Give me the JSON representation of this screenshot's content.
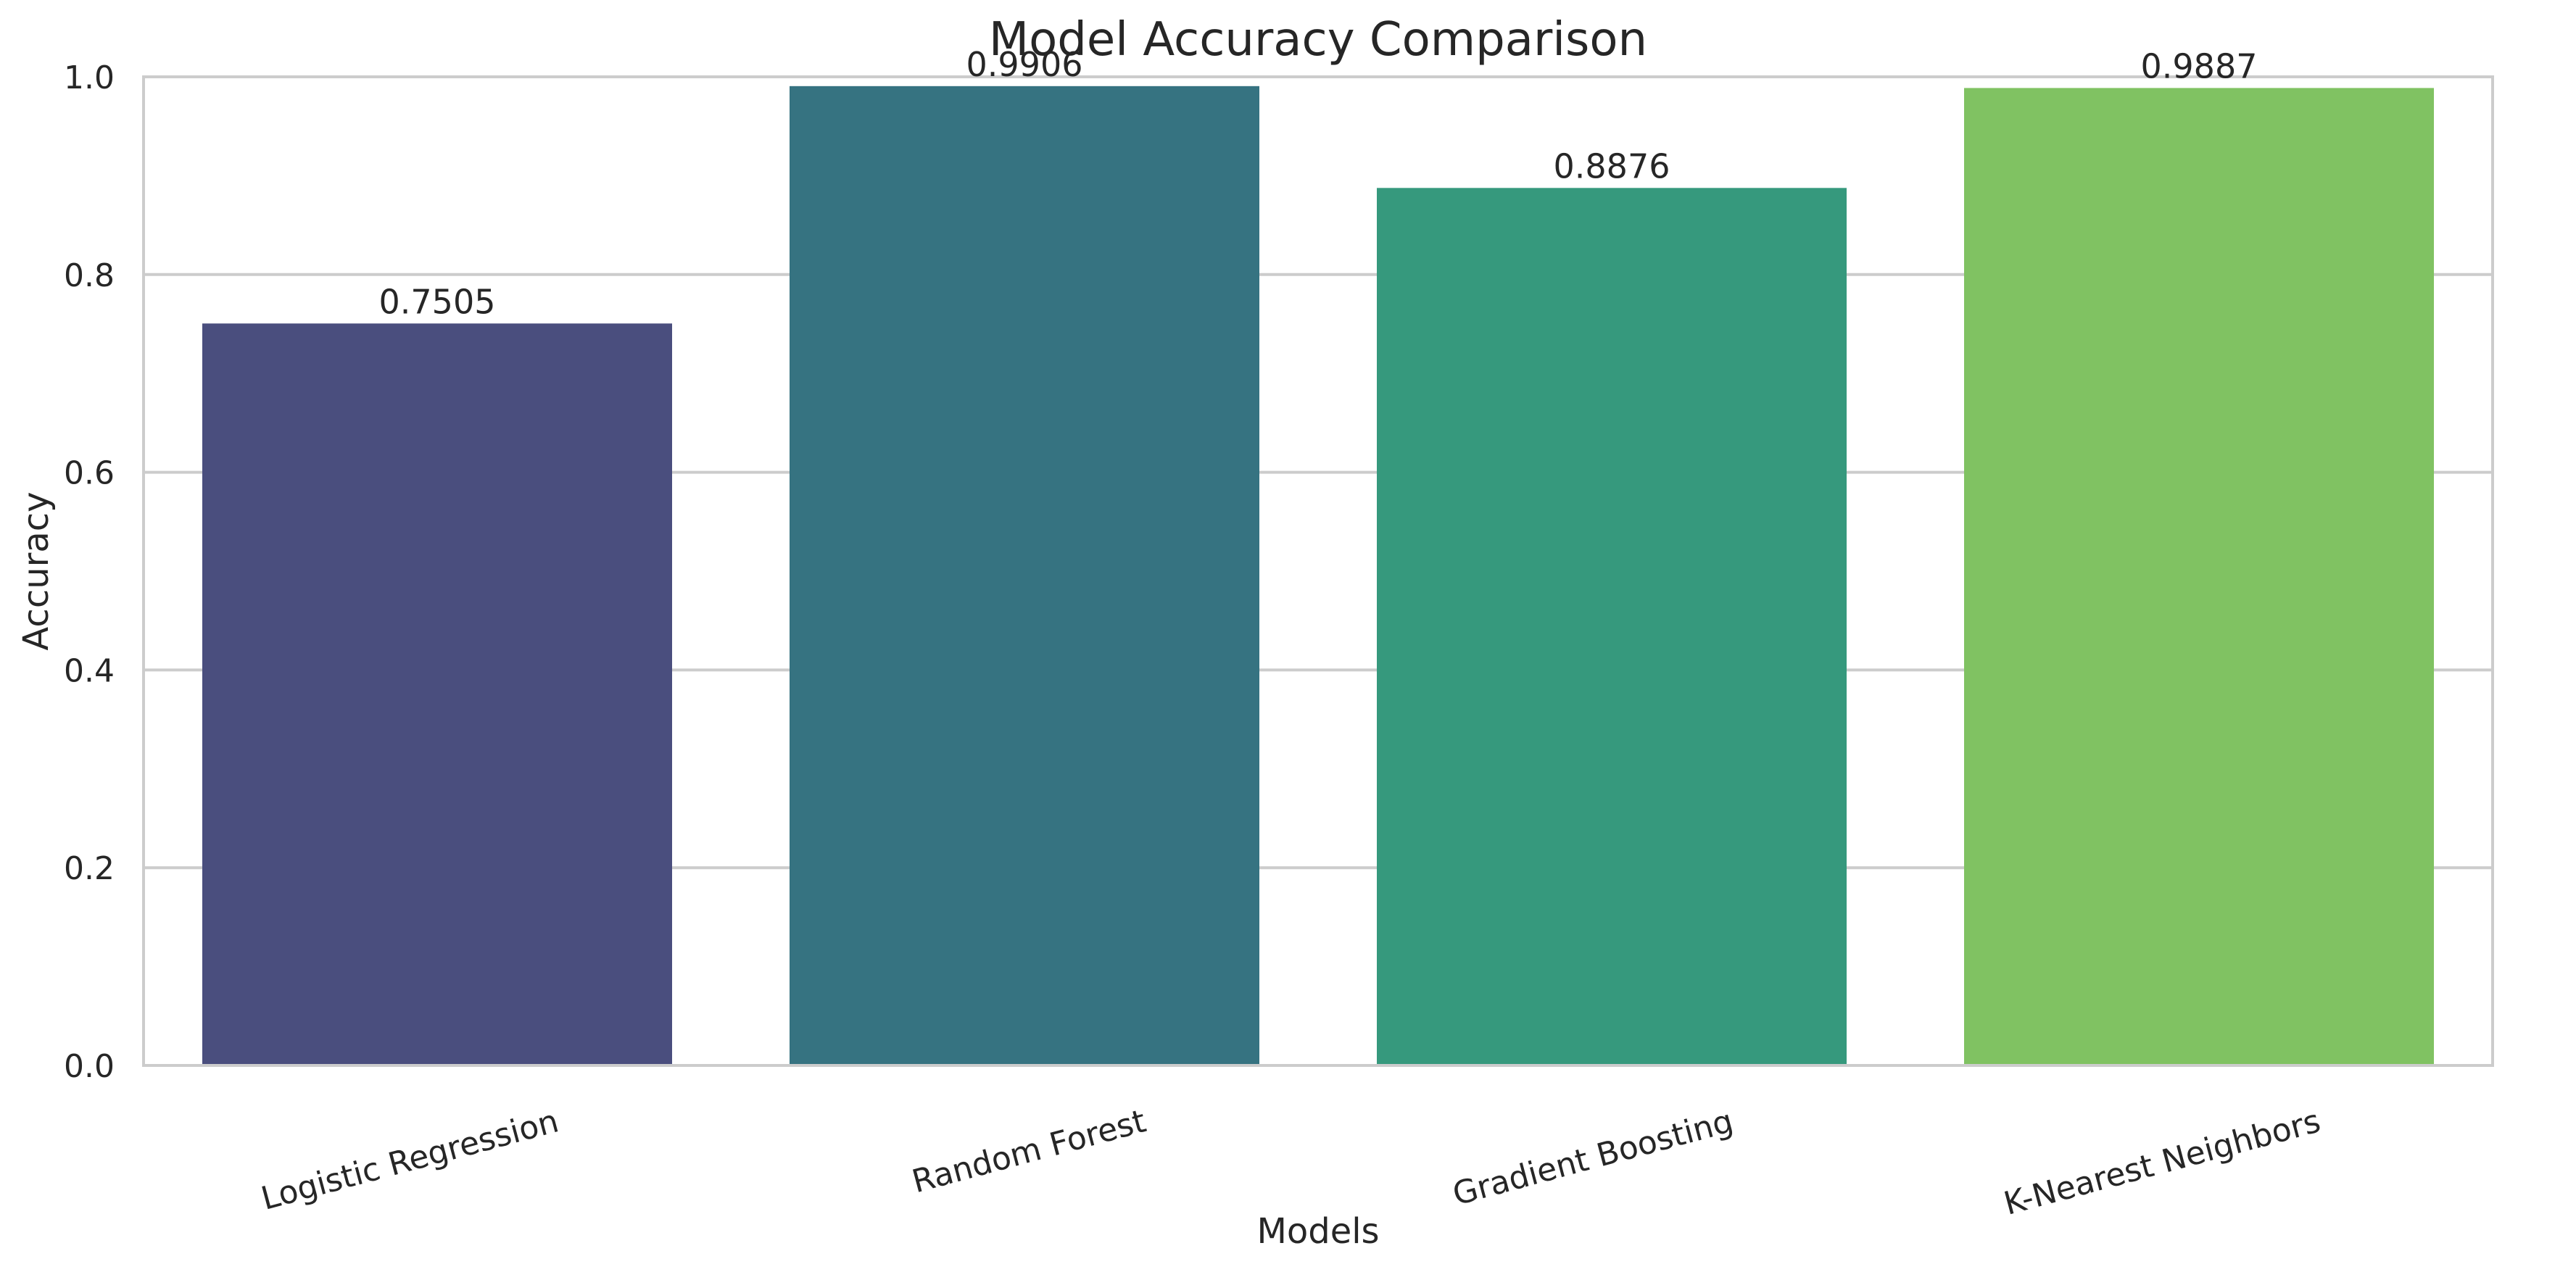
{
  "chart_data": {
    "type": "bar",
    "title": "Model Accuracy Comparison",
    "xlabel": "Models",
    "ylabel": "Accuracy",
    "categories": [
      "Logistic Regression",
      "Random Forest",
      "Gradient Boosting",
      "K-Nearest Neighbors"
    ],
    "values": [
      0.7505,
      0.9906,
      0.8876,
      0.9887
    ],
    "value_labels": [
      "0.7505",
      "0.9906",
      "0.8876",
      "0.9887"
    ],
    "colors": [
      "#482878",
      "#26828e",
      "#35b779",
      "#6ece58"
    ],
    "bar_colors_rendered": [
      "#4a4e7e",
      "#367381",
      "#36997d",
      "#80c262"
    ],
    "ylim": [
      0,
      1.0
    ],
    "yticks": [
      0.0,
      0.2,
      0.4,
      0.6,
      0.8,
      1.0
    ],
    "ytick_labels": [
      "0.0",
      "0.2",
      "0.4",
      "0.6",
      "0.8",
      "1.0"
    ],
    "xtick_rotation": "slanted",
    "grid": "horizontal",
    "legend": "none"
  }
}
